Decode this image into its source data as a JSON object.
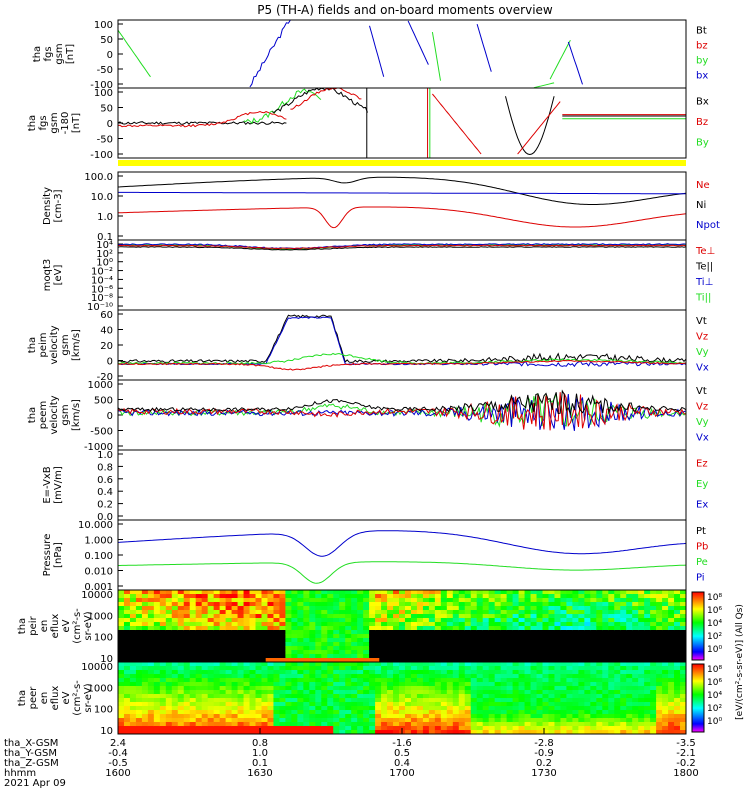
{
  "title": "P5 (TH-A) fields and on-board moments overview",
  "colors": {
    "black": "#000000",
    "red": "#dd0000",
    "green": "#22dd22",
    "blue": "#0000cc",
    "yellow": "#ffff00"
  },
  "chart_data": [
    {
      "type": "line",
      "id": "fgs",
      "ylabel": [
        "tha",
        "fgs",
        "gsm",
        "[nT]"
      ],
      "ylim": [
        -100,
        100
      ],
      "ticks": [
        "100",
        "50",
        "0",
        "-50",
        "-100"
      ],
      "legend": [
        {
          "name": "Bt",
          "color": "black"
        },
        {
          "name": "bz",
          "color": "red"
        },
        {
          "name": "by",
          "color": "green"
        },
        {
          "name": "bx",
          "color": "blue"
        }
      ]
    },
    {
      "type": "line",
      "id": "fgs-dsl",
      "ylabel": [
        "tha",
        "fgs",
        "gsm",
        "-180",
        "[nT]"
      ],
      "ylim": [
        -125,
        110
      ],
      "ticks": [
        "100",
        "50",
        "0",
        "-50",
        "-100"
      ],
      "legend": [
        {
          "name": "Bx",
          "color": "black"
        },
        {
          "name": "Bz",
          "color": "red"
        },
        {
          "name": "By",
          "color": "green"
        }
      ]
    },
    {
      "type": "line",
      "id": "density",
      "ylabel": [
        "Density",
        "[cm-3]"
      ],
      "scale": "log",
      "ylim": [
        0.05,
        250
      ],
      "ticks": [
        "100.0",
        "10.0",
        "1.0",
        "0.1"
      ],
      "legend": [
        {
          "name": "Ne",
          "color": "red"
        },
        {
          "name": "Ni",
          "color": "black"
        },
        {
          "name": "Npot",
          "color": "blue"
        }
      ]
    },
    {
      "type": "line",
      "id": "temperature",
      "ylabel": [
        "moqt3",
        "[eV]"
      ],
      "scale": "log",
      "ticks": [
        "10⁴",
        "10²",
        "10⁰",
        "10⁻²",
        "10⁻⁴",
        "10⁻⁶",
        "10⁻⁸",
        "10⁻¹⁰"
      ],
      "legend": [
        {
          "name": "Te⊥",
          "color": "red"
        },
        {
          "name": "Te||",
          "color": "black"
        },
        {
          "name": "Ti⊥",
          "color": "blue"
        },
        {
          "name": "Ti||",
          "color": "green"
        }
      ]
    },
    {
      "type": "line",
      "id": "peim-velocity",
      "ylabel": [
        "tha",
        "peim",
        "velocity",
        "gsm",
        "[km/s]"
      ],
      "ylim": [
        -20,
        65
      ],
      "ticks": [
        "60",
        "40",
        "20",
        "0",
        "-20"
      ],
      "legend": [
        {
          "name": "Vt",
          "color": "black"
        },
        {
          "name": "Vz",
          "color": "red"
        },
        {
          "name": "Vy",
          "color": "green"
        },
        {
          "name": "Vx",
          "color": "blue"
        }
      ]
    },
    {
      "type": "line",
      "id": "peem-velocity",
      "ylabel": [
        "tha",
        "peem",
        "velocity",
        "gsm",
        "[km/s]"
      ],
      "ylim": [
        -1000,
        1150
      ],
      "ticks": [
        "1000",
        "500",
        "0",
        "-500",
        "-1000"
      ],
      "legend": [
        {
          "name": "Vt",
          "color": "black"
        },
        {
          "name": "Vz",
          "color": "red"
        },
        {
          "name": "Vy",
          "color": "green"
        },
        {
          "name": "Vx",
          "color": "blue"
        }
      ]
    },
    {
      "type": "line",
      "id": "efield",
      "ylabel": [
        "E=-VxB",
        "[mV/m]"
      ],
      "ylim": [
        0,
        1
      ],
      "ticks": [
        "1.0",
        "0.8",
        "0.6",
        "0.4",
        "0.2",
        "0.0"
      ],
      "legend": [
        {
          "name": "Ez",
          "color": "red"
        },
        {
          "name": "Ey",
          "color": "green"
        },
        {
          "name": "Ex",
          "color": "blue"
        }
      ]
    },
    {
      "type": "line",
      "id": "pressure",
      "ylabel": [
        "Pressure",
        "[nPa]"
      ],
      "scale": "log",
      "ticks": [
        "10.000",
        "1.000",
        "0.100",
        "0.010",
        "0.001"
      ],
      "legend": [
        {
          "name": "Pt",
          "color": "black"
        },
        {
          "name": "Pb",
          "color": "red"
        },
        {
          "name": "Pe",
          "color": "green"
        },
        {
          "name": "Pi",
          "color": "blue"
        }
      ]
    },
    {
      "type": "heatmap",
      "id": "peir-spec",
      "ylabel": [
        "tha",
        "peir",
        "en",
        "eflux",
        "eV",
        "(cm²-s-",
        "sr-eV)"
      ],
      "ticks": [
        "10000",
        "1000",
        "100",
        "10"
      ]
    },
    {
      "type": "heatmap",
      "id": "peer-spec",
      "ylabel": [
        "tha",
        "peer",
        "en",
        "eflux",
        "eV",
        "(cm²-s-",
        "sr-eV)"
      ],
      "ticks": [
        "10000",
        "1000",
        "100",
        "10"
      ]
    }
  ],
  "colorbar": {
    "ticks": [
      "10⁸",
      "10⁶",
      "10⁴",
      "10²",
      "10⁰",
      "10⁸",
      "10⁶",
      "10⁴",
      "10²",
      "10⁰"
    ],
    "label": "[eV/(cm²-s-sr-eV)] (All Qs)"
  },
  "xaxis": {
    "labels": [
      "tha_X-GSM",
      "tha_Y-GSM",
      "tha_Z-GSM",
      "hhmm",
      "2021 Apr 09"
    ],
    "columns": [
      [
        "2.4",
        "-0.4",
        "-0.5",
        "1600"
      ],
      [
        "0.8",
        "1.0",
        "0.1",
        "1630"
      ],
      [
        "-1.6",
        "0.5",
        "0.4",
        "1700"
      ],
      [
        "-2.8",
        "-0.9",
        "0.2",
        "1730"
      ],
      [
        "-3.5",
        "-2.1",
        "-0.2",
        "1800"
      ]
    ]
  }
}
